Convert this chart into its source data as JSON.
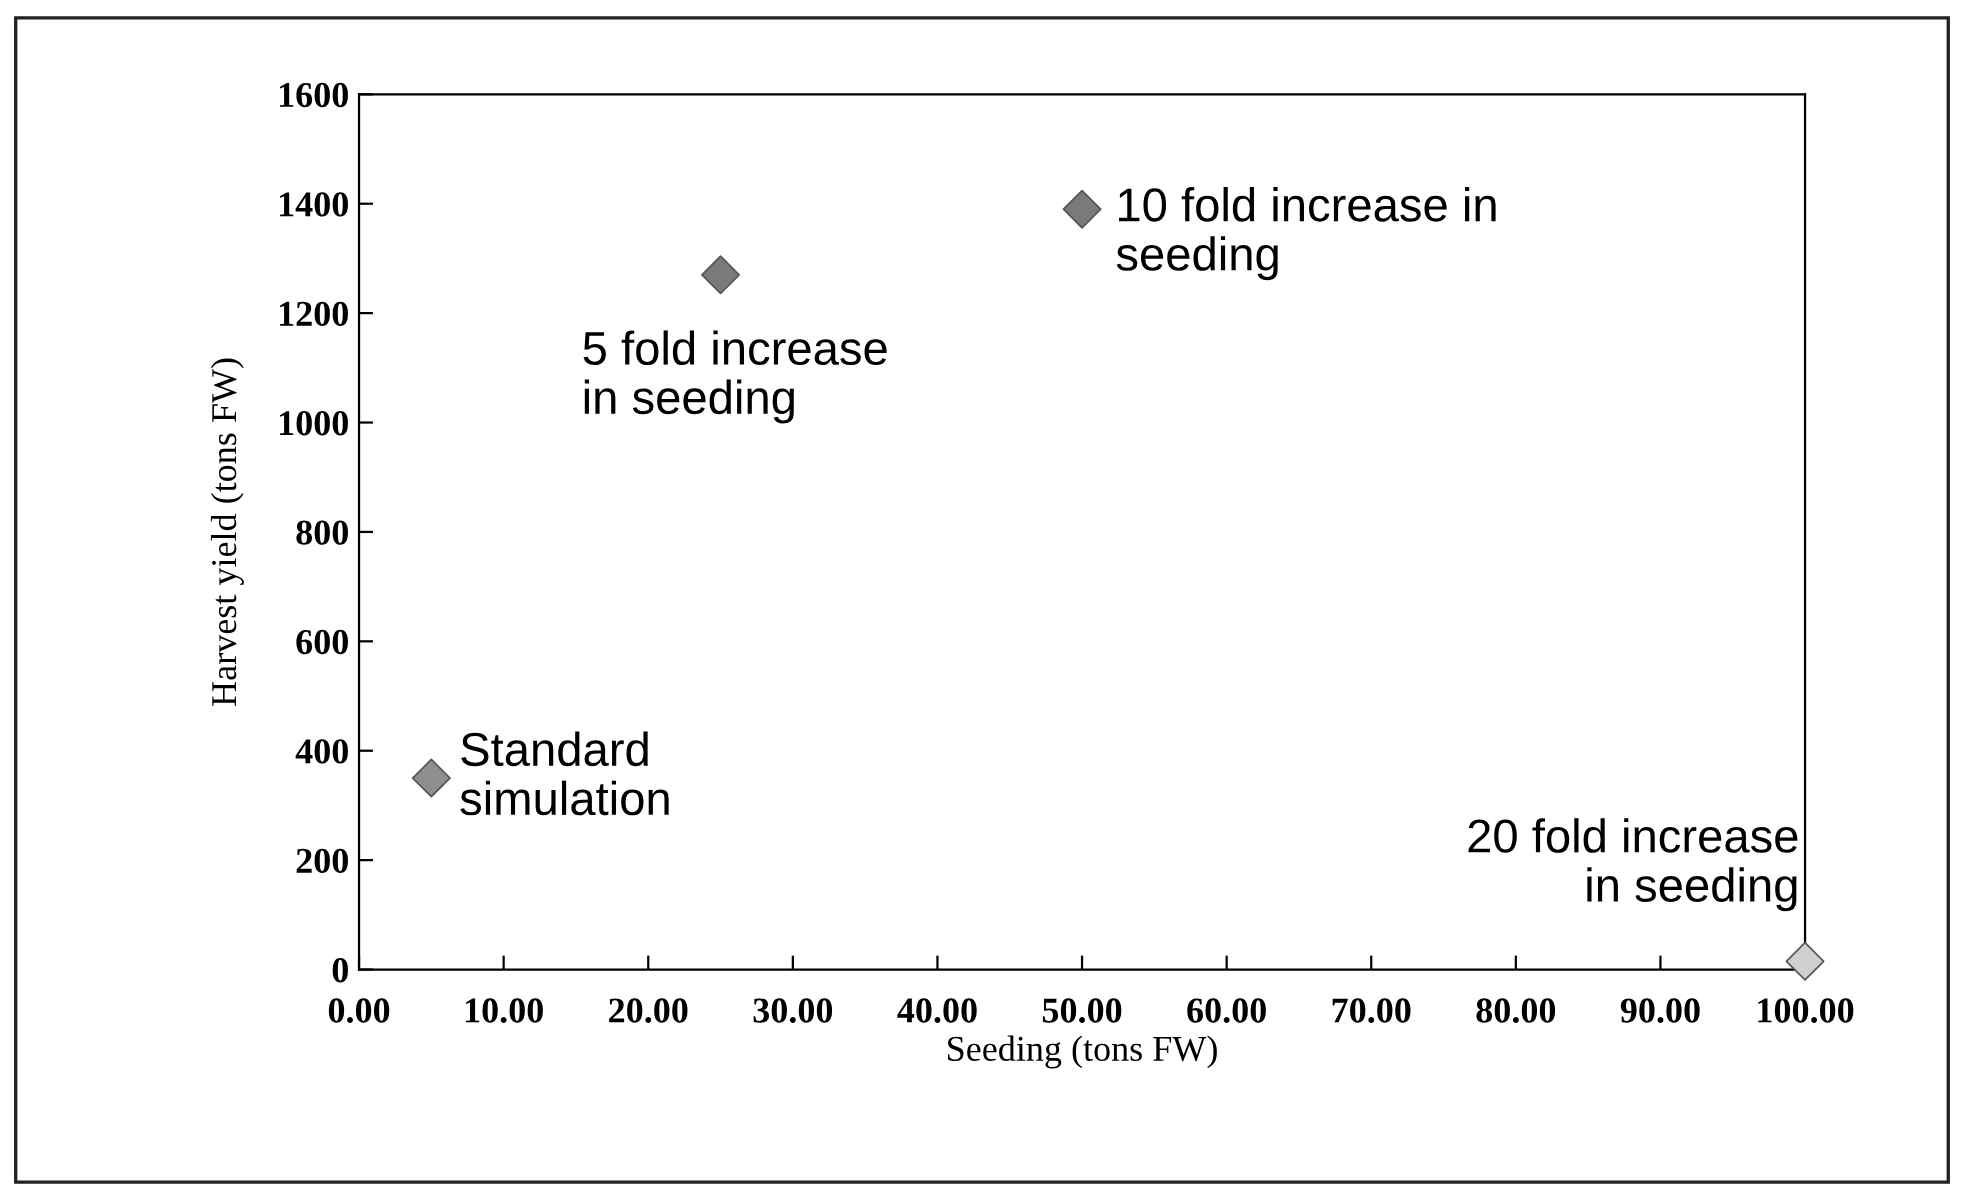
{
  "chart_data": {
    "type": "scatter",
    "xlabel": "Seeding (tons FW)",
    "ylabel": "Harvest yield (tons FW)",
    "x": [
      5,
      25,
      50,
      100
    ],
    "values": [
      350,
      1270,
      1390,
      15
    ],
    "colors": [
      "#8f8f8f",
      "#7a7a7a",
      "#7a7a7a",
      "#cfcfcf"
    ],
    "marker": "diamond",
    "grid": false,
    "xlim": [
      0,
      100
    ],
    "ylim": [
      0,
      1600
    ],
    "xticks": [
      {
        "value": 0,
        "label": "0.00"
      },
      {
        "value": 10,
        "label": "10.00"
      },
      {
        "value": 20,
        "label": "20.00"
      },
      {
        "value": 30,
        "label": "30.00"
      },
      {
        "value": 40,
        "label": "40.00"
      },
      {
        "value": 50,
        "label": "50.00"
      },
      {
        "value": 60,
        "label": "60.00"
      },
      {
        "value": 70,
        "label": "70.00"
      },
      {
        "value": 80,
        "label": "80.00"
      },
      {
        "value": 90,
        "label": "90.00"
      },
      {
        "value": 100,
        "label": "100.00"
      }
    ],
    "yticks": [
      0,
      200,
      400,
      600,
      800,
      1000,
      1200,
      1400,
      1600
    ],
    "annotations": [
      {
        "text": "Standard\nsimulation",
        "x": 5,
        "y": 350
      },
      {
        "text": "5 fold increase\nin seeding",
        "x": 25,
        "y": 1270
      },
      {
        "text": "10 fold increase in\nseeding",
        "x": 50,
        "y": 1390
      },
      {
        "text": "20 fold increase\nin seeding",
        "x": 100,
        "y": 15
      }
    ]
  }
}
